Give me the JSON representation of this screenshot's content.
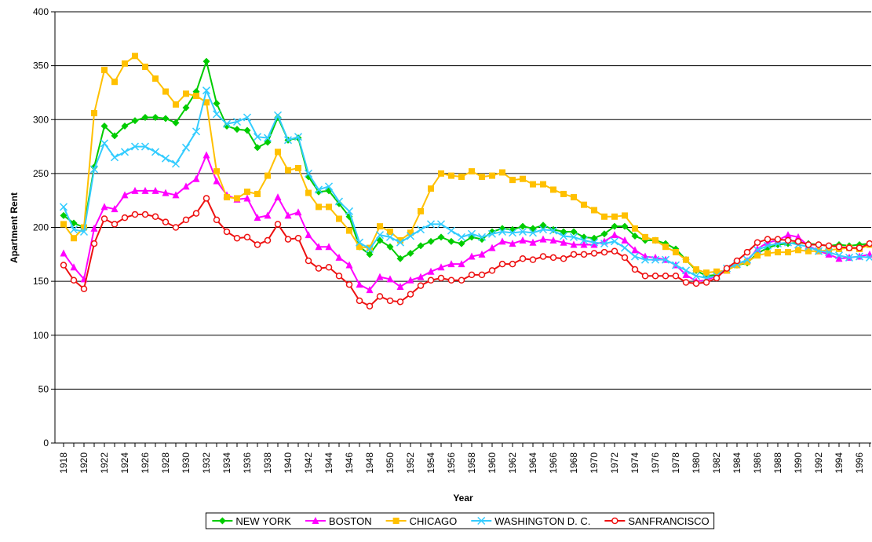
{
  "chart_data": {
    "type": "line",
    "y_label": "Apartment Rent",
    "x_label": "Year",
    "categories": [
      "1918",
      null,
      "1920",
      null,
      "1922",
      null,
      "1924",
      null,
      "1926",
      null,
      "1928",
      null,
      "1930",
      null,
      "1932",
      null,
      "1934",
      null,
      "1936",
      null,
      "1938",
      null,
      "1940",
      null,
      "1942",
      null,
      "1944",
      null,
      "1946",
      null,
      "1948",
      null,
      "1950",
      null,
      "1952",
      null,
      "1954",
      null,
      "1956",
      null,
      "1958",
      null,
      "1960",
      null,
      "1962",
      null,
      "1964",
      null,
      "1966",
      null,
      "1968",
      null,
      "1970",
      null,
      "1972",
      null,
      "1974",
      null,
      "1976",
      null,
      "1978",
      null,
      "1980",
      null,
      "1982",
      null,
      "1984",
      null,
      "1986",
      null,
      "1988",
      null,
      "1990",
      null,
      "1992",
      null,
      "1994",
      null,
      "1996",
      null
    ],
    "ylim": [
      0,
      400
    ],
    "yticks": [
      0,
      50,
      100,
      150,
      200,
      250,
      300,
      350,
      400
    ],
    "grid": true,
    "legend": "bottom",
    "series": [
      {
        "name": "NEW YORK",
        "color": "#00cc00",
        "marker": "diamond",
        "values": [
          211,
          204,
          200,
          256,
          294,
          285,
          294,
          299,
          302,
          302,
          301,
          297,
          311,
          326,
          354,
          315,
          294,
          291,
          290,
          274,
          279,
          302,
          281,
          283,
          247,
          233,
          234,
          222,
          210,
          182,
          175,
          188,
          182,
          171,
          176,
          183,
          187,
          191,
          187,
          185,
          191,
          189,
          196,
          199,
          198,
          201,
          199,
          202,
          198,
          196,
          196,
          191,
          190,
          194,
          201,
          201,
          192,
          188,
          188,
          185,
          180,
          170,
          160,
          155,
          156,
          161,
          165,
          167,
          176,
          181,
          184,
          185,
          186,
          185,
          184,
          183,
          184,
          183,
          184,
          185
        ]
      },
      {
        "name": "BOSTON",
        "color": "#ff00ff",
        "marker": "triangle",
        "values": [
          176,
          163,
          152,
          199,
          219,
          217,
          230,
          234,
          234,
          234,
          232,
          230,
          238,
          245,
          267,
          243,
          230,
          226,
          227,
          209,
          211,
          228,
          211,
          214,
          193,
          182,
          182,
          172,
          165,
          147,
          142,
          154,
          152,
          145,
          151,
          154,
          159,
          163,
          166,
          166,
          173,
          175,
          181,
          187,
          185,
          188,
          186,
          189,
          188,
          186,
          184,
          184,
          184,
          187,
          193,
          188,
          179,
          173,
          172,
          170,
          165,
          156,
          150,
          151,
          155,
          160,
          166,
          169,
          180,
          186,
          188,
          193,
          191,
          183,
          178,
          175,
          171,
          172,
          173,
          175
        ]
      },
      {
        "name": "CHICAGO",
        "color": "#ffc000",
        "marker": "square",
        "values": [
          203,
          190,
          200,
          306,
          346,
          335,
          352,
          359,
          349,
          338,
          326,
          314,
          324,
          322,
          316,
          252,
          228,
          227,
          233,
          231,
          248,
          270,
          253,
          255,
          232,
          219,
          219,
          208,
          197,
          182,
          181,
          201,
          196,
          188,
          195,
          215,
          236,
          250,
          248,
          247,
          252,
          247,
          248,
          251,
          244,
          245,
          240,
          240,
          235,
          231,
          228,
          221,
          216,
          210,
          210,
          211,
          199,
          191,
          188,
          182,
          177,
          170,
          161,
          158,
          159,
          160,
          165,
          168,
          174,
          176,
          177,
          177,
          179,
          178,
          178,
          179,
          180,
          181,
          180,
          184
        ]
      },
      {
        "name": "WASHINGTON  D. C.",
        "color": "#33ccff",
        "marker": "x",
        "values": [
          219,
          198,
          196,
          254,
          278,
          265,
          270,
          275,
          275,
          270,
          264,
          259,
          274,
          289,
          327,
          305,
          296,
          298,
          302,
          284,
          283,
          304,
          281,
          284,
          250,
          235,
          238,
          224,
          215,
          186,
          180,
          193,
          191,
          186,
          192,
          198,
          203,
          203,
          197,
          191,
          194,
          191,
          194,
          196,
          195,
          196,
          195,
          198,
          197,
          192,
          191,
          188,
          186,
          185,
          187,
          181,
          173,
          170,
          170,
          170,
          165,
          160,
          155,
          153,
          155,
          162,
          166,
          170,
          179,
          183,
          185,
          186,
          184,
          182,
          178,
          177,
          174,
          172,
          173,
          172
        ]
      },
      {
        "name": "SANFRANCISCO",
        "color": "#ee1111",
        "marker": "circle",
        "values": [
          165,
          151,
          143,
          185,
          208,
          203,
          209,
          212,
          212,
          210,
          205,
          200,
          207,
          213,
          227,
          207,
          196,
          190,
          191,
          184,
          188,
          203,
          189,
          190,
          169,
          162,
          163,
          155,
          147,
          132,
          127,
          136,
          132,
          131,
          138,
          146,
          151,
          153,
          151,
          151,
          156,
          156,
          160,
          166,
          166,
          171,
          170,
          173,
          172,
          171,
          175,
          175,
          176,
          177,
          178,
          172,
          161,
          155,
          155,
          155,
          155,
          149,
          148,
          149,
          153,
          162,
          169,
          177,
          186,
          189,
          189,
          188,
          187,
          184,
          184,
          183,
          182,
          181,
          181,
          185
        ]
      }
    ]
  }
}
